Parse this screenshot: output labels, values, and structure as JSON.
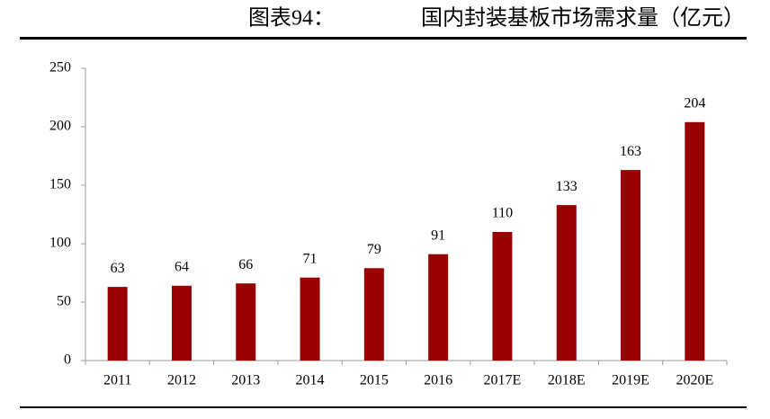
{
  "chart_data": {
    "type": "bar",
    "figure_label": "图表94：",
    "title": "国内封装基板市场需求量（亿元）",
    "categories": [
      "2011",
      "2012",
      "2013",
      "2014",
      "2015",
      "2016",
      "2017E",
      "2018E",
      "2019E",
      "2020E"
    ],
    "values": [
      63,
      64,
      66,
      71,
      79,
      91,
      110,
      133,
      163,
      204
    ],
    "color": "#990000",
    "ylim": [
      0,
      250
    ],
    "yticks": [
      0,
      50,
      100,
      150,
      200,
      250
    ],
    "grid": false
  }
}
